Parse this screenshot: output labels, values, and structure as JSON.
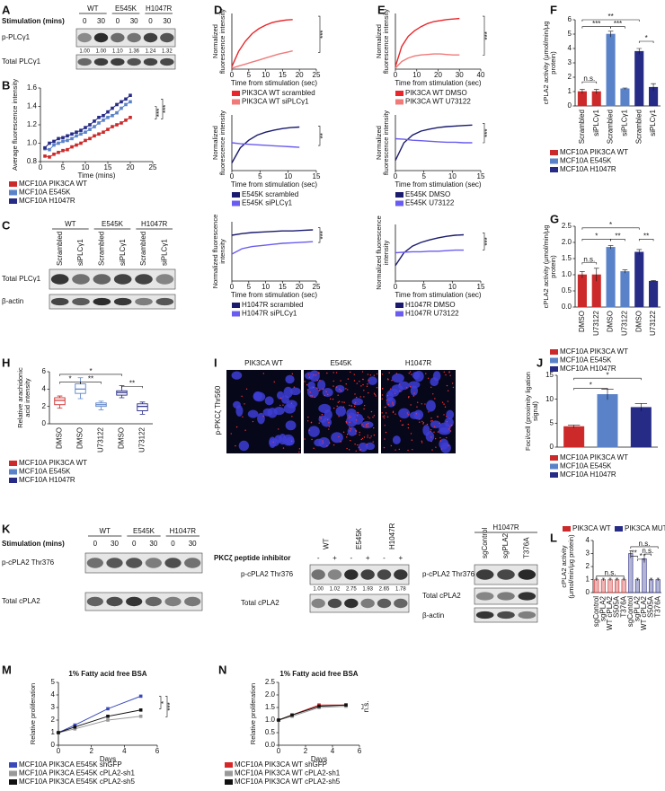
{
  "panel_labels": [
    "A",
    "B",
    "C",
    "D",
    "E",
    "F",
    "G",
    "H",
    "I",
    "J",
    "K",
    "L",
    "M",
    "N"
  ],
  "blots": {
    "A": {
      "stimulation_label": "Stimulation (mins)",
      "groups": [
        "WT",
        "E545K",
        "H1047R"
      ],
      "times": [
        "0",
        "30",
        "0",
        "30",
        "0",
        "30"
      ],
      "rows": [
        "p-PLCγ1",
        "Total PLCγ1"
      ],
      "quant": [
        "1.00",
        "1.00",
        "1.10",
        "1.36",
        "1.24",
        "1.32"
      ]
    },
    "C": {
      "groups": [
        "WT",
        "E545K",
        "H1047R"
      ],
      "lanes": [
        "Scrambled",
        "siPLCγ1",
        "Scrambled",
        "siPLCγ1",
        "Scrambled",
        "siPLCγ1"
      ],
      "rows": [
        "Total PLCγ1",
        "β-actin"
      ]
    },
    "I": {
      "ylabel": "p-PKCζ Thr560",
      "images": [
        "PIK3CA WT",
        "E545K",
        "H1047R"
      ]
    },
    "K1": {
      "stimulation_label": "Stimulation (mins)",
      "groups": [
        "WT",
        "E545K",
        "H1047R"
      ],
      "times": [
        "0",
        "30",
        "0",
        "30",
        "0",
        "30"
      ],
      "rows": [
        "p-cPLA2 Thr376",
        "Total cPLA2"
      ]
    },
    "K2": {
      "inhibitor_label": "PKCζ peptide inhibitor",
      "groups": [
        "WT",
        "E545K",
        "H1047R"
      ],
      "treatment": [
        "-",
        "+",
        "-",
        "+",
        "-",
        "+"
      ],
      "rows": [
        "p-cPLA2 Thr376",
        "Total cPLA2"
      ],
      "quant": [
        "1.00",
        "1.02",
        "2.75",
        "1.93",
        "2.65",
        "1.78"
      ]
    },
    "K3": {
      "group": "H1047R",
      "lanes": [
        "sgControl",
        "sgPLA2",
        "T376A"
      ],
      "rows": [
        "p-cPLA2 Thr376",
        "Total cPLA2",
        "β-actin"
      ]
    }
  },
  "chart_data": [
    {
      "type": "line",
      "markers": true,
      "ylabel": "Average fluorescence intensity",
      "xlabel": "Time (mins)",
      "x": [
        1,
        2,
        3,
        4,
        5,
        6,
        7,
        8,
        9,
        10,
        11,
        12,
        13,
        14,
        15,
        16,
        17,
        18,
        19,
        20
      ],
      "xlim": [
        0,
        25
      ],
      "xticks": [
        0,
        5,
        10,
        15,
        20,
        25
      ],
      "ylim": [
        0.8,
        1.6
      ],
      "yticks": [
        0.8,
        {
          "value": 1,
          "label": "1.0"
        },
        1.2,
        1.4,
        1.6
      ],
      "series": [
        {
          "name": "MCF10A PIK3CA WT",
          "color": "#cc2a2a",
          "values": [
            0.86,
            0.85,
            0.88,
            0.9,
            0.92,
            0.93,
            0.96,
            0.98,
            1.0,
            1.03,
            1.05,
            1.08,
            1.1,
            1.12,
            1.15,
            1.18,
            1.2,
            1.22,
            1.25,
            1.28
          ]
        },
        {
          "name": "MCF10A E545K",
          "color": "#5a82c8",
          "values": [
            0.94,
            0.93,
            0.98,
            1.0,
            1.02,
            1.03,
            1.05,
            1.08,
            1.1,
            1.12,
            1.15,
            1.18,
            1.22,
            1.25,
            1.28,
            1.3,
            1.33,
            1.38,
            1.42,
            1.45
          ]
        },
        {
          "name": "MCF10A H1047R",
          "color": "#262b86",
          "values": [
            0.95,
            1.0,
            1.02,
            1.05,
            1.06,
            1.08,
            1.1,
            1.12,
            1.14,
            1.17,
            1.2,
            1.24,
            1.28,
            1.3,
            1.34,
            1.38,
            1.42,
            1.45,
            1.48,
            1.52
          ]
        }
      ],
      "annotations": [
        "***",
        "***"
      ]
    },
    {
      "type": "line",
      "ylabel": "Normalized fluorescence intensity",
      "xlabel": "Time from stimulation (sec)",
      "x": [
        0,
        2,
        4,
        6,
        8,
        10,
        12,
        14,
        16,
        18
      ],
      "xlim": [
        0,
        25
      ],
      "xticks": [
        0,
        5,
        10,
        15,
        20,
        25
      ],
      "ylim": [
        0,
        1.1
      ],
      "series": [
        {
          "name": "PIK3CA WT scrambled",
          "color": "#e8262b",
          "values": [
            0.05,
            0.35,
            0.55,
            0.7,
            0.8,
            0.87,
            0.92,
            0.95,
            0.97,
            0.98
          ]
        },
        {
          "name": "PIK3CA WT siPLCγ1",
          "color": "#f07a7a",
          "values": [
            0.02,
            0.06,
            0.1,
            0.14,
            0.18,
            0.22,
            0.26,
            0.3,
            0.33,
            0.36
          ]
        }
      ],
      "annotations": [
        "***"
      ]
    },
    {
      "type": "line",
      "ylabel": "Normalized fluorescence intensity",
      "xlabel": "Time from stimulation (sec)",
      "x": [
        0,
        1.5,
        3,
        4.5,
        6,
        7.5,
        9,
        10.5,
        12
      ],
      "xlim": [
        0,
        15
      ],
      "xticks": [
        0,
        5,
        10,
        15
      ],
      "ylim": [
        0,
        1.1
      ],
      "series": [
        {
          "name": "E545K scrambled",
          "color": "#1a1a6e",
          "values": [
            0.15,
            0.45,
            0.6,
            0.7,
            0.76,
            0.8,
            0.83,
            0.85,
            0.86
          ]
        },
        {
          "name": "E545K siPLCγ1",
          "color": "#6a5cf0",
          "values": [
            0.55,
            0.53,
            0.52,
            0.51,
            0.5,
            0.49,
            0.48,
            0.47,
            0.46
          ]
        }
      ],
      "annotations": [
        "**"
      ]
    },
    {
      "type": "line",
      "ylabel": "Normalized fluorescence intensity",
      "xlabel": "Time from stimulation (sec)",
      "x": [
        0,
        3,
        6,
        9,
        12,
        15,
        18,
        21,
        24
      ],
      "xlim": [
        0,
        25
      ],
      "xticks": [
        0,
        5,
        10,
        15,
        20,
        25
      ],
      "ylim": [
        0,
        1.1
      ],
      "series": [
        {
          "name": "H1047R scrambled",
          "color": "#1a1a6e",
          "values": [
            0.85,
            0.88,
            0.9,
            0.91,
            0.92,
            0.93,
            0.93,
            0.94,
            0.95
          ]
        },
        {
          "name": "H1047R siPLCγ1",
          "color": "#6a5cf0",
          "values": [
            0.5,
            0.6,
            0.64,
            0.66,
            0.68,
            0.7,
            0.71,
            0.72,
            0.73
          ]
        }
      ],
      "annotations": [
        "***"
      ]
    },
    {
      "type": "line",
      "ylabel": "Normalized fluorescence intensity",
      "xlabel": "Time from stimulation (sec)",
      "x": [
        0,
        3,
        6,
        9,
        12,
        15,
        18,
        21,
        24,
        27,
        30
      ],
      "xlim": [
        0,
        40
      ],
      "xticks": [
        0,
        10,
        20,
        30,
        40
      ],
      "ylim": [
        0,
        1.1
      ],
      "series": [
        {
          "name": "PIK3CA WT DMSO",
          "color": "#e8262b",
          "values": [
            0.05,
            0.45,
            0.65,
            0.76,
            0.84,
            0.9,
            0.94,
            0.96,
            0.98,
            0.99,
            1.0
          ]
        },
        {
          "name": "PIK3CA WT U73122",
          "color": "#f07a7a",
          "values": [
            0.02,
            0.15,
            0.22,
            0.26,
            0.28,
            0.29,
            0.3,
            0.3,
            0.29,
            0.28,
            0.28
          ]
        }
      ],
      "annotations": [
        "***"
      ]
    },
    {
      "type": "line",
      "ylabel": "Normalized fluorescence intensity",
      "xlabel": "Time from stimulation (sec)",
      "x": [
        0,
        1.5,
        3,
        4.5,
        6,
        7.5,
        9,
        10.5,
        12,
        13.5
      ],
      "xlim": [
        0,
        15
      ],
      "xticks": [
        0,
        5,
        10,
        15
      ],
      "ylim": [
        0,
        1.1
      ],
      "series": [
        {
          "name": "E545K DMSO",
          "color": "#1a1a6e",
          "values": [
            0.2,
            0.55,
            0.7,
            0.78,
            0.82,
            0.85,
            0.87,
            0.88,
            0.89,
            0.9
          ]
        },
        {
          "name": "E545K U73122",
          "color": "#6a5cf0",
          "values": [
            0.63,
            0.62,
            0.6,
            0.59,
            0.58,
            0.57,
            0.56,
            0.56,
            0.55,
            0.55
          ]
        }
      ],
      "annotations": [
        "***"
      ]
    },
    {
      "type": "line",
      "ylabel": "Normalized fluorescence intensity",
      "xlabel": "Time from stimulation (sec)",
      "x": [
        0,
        1.5,
        3,
        4.5,
        6,
        7.5,
        9,
        10.5,
        12
      ],
      "xlim": [
        0,
        15
      ],
      "xticks": [
        0,
        5,
        10,
        15
      ],
      "ylim": [
        0,
        1.1
      ],
      "series": [
        {
          "name": "H1047R DMSO",
          "color": "#1a1a6e",
          "values": [
            0.3,
            0.55,
            0.68,
            0.75,
            0.8,
            0.84,
            0.87,
            0.89,
            0.9
          ]
        },
        {
          "name": "H1047R U73122",
          "color": "#6a5cf0",
          "values": [
            0.55,
            0.56,
            0.57,
            0.57,
            0.58,
            0.58,
            0.59,
            0.6,
            0.6
          ]
        }
      ],
      "annotations": [
        "***"
      ]
    },
    {
      "type": "bar",
      "ylabel": "cPLA2 activity (μmol/min/μg protein)",
      "categories": [
        "Scrambled",
        "siPLCγ1",
        "Scrambled",
        "siPLCγ1",
        "Scrambled",
        "siPLCγ1"
      ],
      "values": [
        1,
        1,
        5,
        1.2,
        3.8,
        1.3
      ],
      "errors": [
        0.15,
        0.15,
        0.2,
        0.05,
        0.2,
        0.25
      ],
      "colors": [
        "#cc2a2a",
        "#cc2a2a",
        "#5a82c8",
        "#5a82c8",
        "#262b86",
        "#262b86"
      ],
      "ylim": [
        0,
        6
      ],
      "yticks": [
        0,
        1,
        2,
        3,
        4,
        5,
        6
      ],
      "legend": [
        {
          "name": "MCF10A PIK3CA WT",
          "color": "#cc2a2a"
        },
        {
          "name": "MCF10A E545K",
          "color": "#5a82c8"
        },
        {
          "name": "MCF10A H1047R",
          "color": "#262b86"
        }
      ],
      "annotations": [
        "n.s.",
        "**",
        "***",
        "***",
        "*"
      ]
    },
    {
      "type": "bar",
      "ylabel": "cPLA2 activity (μmol/min/μg protein)",
      "categories": [
        "DMSO",
        "U73122",
        "DMSO",
        "U73122",
        "DMSO",
        "U73122"
      ],
      "values": [
        1,
        1,
        1.85,
        1.1,
        1.7,
        0.8
      ],
      "errors": [
        0.1,
        0.2,
        0.05,
        0.05,
        0.08,
        0.02
      ],
      "colors": [
        "#cc2a2a",
        "#cc2a2a",
        "#5a82c8",
        "#5a82c8",
        "#262b86",
        "#262b86"
      ],
      "ylim": [
        0,
        2.5
      ],
      "yticks": [
        {
          "value": 0,
          "label": "0.0"
        },
        0.5,
        {
          "value": 1,
          "label": "1.0"
        },
        1.5,
        {
          "value": 2,
          "label": "2.0"
        },
        2.5
      ],
      "legend": [
        {
          "name": "MCF10A PIK3CA WT",
          "color": "#cc2a2a"
        },
        {
          "name": "MCF10A E545K",
          "color": "#5a82c8"
        },
        {
          "name": "MCF10A H1047R",
          "color": "#262b86"
        }
      ],
      "annotations": [
        "n.s.",
        "*",
        "**",
        "*",
        "**"
      ]
    },
    {
      "type": "box",
      "ylabel": "Relative arachidonic acid intensity",
      "categories": [
        "DMSO",
        "DMSO",
        "U73122",
        "DMSO",
        "U73122"
      ],
      "boxes": [
        {
          "min": 1.8,
          "q1": 2.2,
          "median": 2.7,
          "q3": 3.0,
          "max": 3.2
        },
        {
          "min": 2.9,
          "q1": 3.5,
          "median": 4.0,
          "q3": 4.6,
          "max": 5.3
        },
        {
          "min": 1.6,
          "q1": 2.0,
          "median": 2.2,
          "q3": 2.4,
          "max": 2.6
        },
        {
          "min": 3.0,
          "q1": 3.3,
          "median": 3.6,
          "q3": 3.8,
          "max": 4.4
        },
        {
          "min": 1.1,
          "q1": 1.5,
          "median": 2.0,
          "q3": 2.3,
          "max": 2.5
        }
      ],
      "colors": [
        "#cc2a2a",
        "#5a82c8",
        "#5a82c8",
        "#262b86",
        "#262b86"
      ],
      "ylim": [
        0,
        6
      ],
      "yticks": [
        0,
        2,
        4,
        6
      ],
      "legend": [
        {
          "name": "MCF10A PIK3CA WT",
          "color": "#cc2a2a"
        },
        {
          "name": "MCF10A E545K",
          "color": "#5a82c8"
        },
        {
          "name": "MCF10A H1047R",
          "color": "#262b86"
        }
      ],
      "annotations": [
        "*",
        "**",
        "*",
        "**"
      ]
    },
    {
      "type": "bar",
      "ylabel": "Foci/cell (proximity ligation signal)",
      "categories": [
        null,
        null,
        null
      ],
      "values": [
        4.3,
        11,
        8.3
      ],
      "errors": [
        0.3,
        1.1,
        0.8
      ],
      "colors": [
        "#cc2a2a",
        "#5a82c8",
        "#262b86"
      ],
      "ylim": [
        0,
        15
      ],
      "yticks": [
        0,
        5,
        10,
        15
      ],
      "legend": [
        {
          "name": "MCF10A PIK3CA WT",
          "color": "#cc2a2a"
        },
        {
          "name": "MCF10A E545K",
          "color": "#5a82c8"
        },
        {
          "name": "MCF10A H1047R",
          "color": "#262b86"
        }
      ],
      "annotations": [
        "*",
        "*"
      ]
    },
    {
      "type": "bar",
      "ylabel": "cPLA2 activity (μmol/min/μg protein)",
      "categories": [
        "sgControl",
        "sgPLA2",
        "WT cPLA2",
        "S505A",
        "T376A",
        "sgControl",
        "sgPLA2",
        "WT cPLA2",
        "S505A",
        "T376A"
      ],
      "values": [
        1,
        1,
        1,
        1,
        1,
        3,
        1,
        2.6,
        1,
        1
      ],
      "errors": [
        0.1,
        0.1,
        0.1,
        0.1,
        0.1,
        0.2,
        0.1,
        0.3,
        0.1,
        0.1
      ],
      "colors": [
        "#cc2a2a",
        "#cc2a2a",
        "#cc2a2a",
        "#cc2a2a",
        "#cc2a2a",
        "#262b86",
        "#262b86",
        "#262b86",
        "#262b86",
        "#262b86"
      ],
      "ylim": [
        0,
        4
      ],
      "yticks": [
        0,
        1,
        2,
        3,
        4
      ],
      "legend": [
        {
          "name": "PIK3CA WT",
          "color": "#cc2a2a"
        },
        {
          "name": "PIK3CA MUT",
          "color": "#262b86"
        }
      ],
      "annotations": [
        "n.s.",
        "**",
        "*",
        "n.s.",
        "n.s."
      ]
    },
    {
      "type": "line",
      "markers": true,
      "title": "1% Fatty acid free BSA",
      "ylabel": "Relative proliferation",
      "xlabel": "Days",
      "x": [
        0,
        1,
        3,
        5
      ],
      "xlim": [
        0,
        6
      ],
      "xticks": [
        0,
        2,
        4,
        6
      ],
      "ylim": [
        0,
        5
      ],
      "yticks": [
        0,
        1,
        2,
        3,
        4,
        5
      ],
      "series": [
        {
          "name": "MCF10A PIK3CA E545K shGFP",
          "color": "#3a4ab8",
          "values": [
            1,
            1.6,
            2.9,
            3.9
          ]
        },
        {
          "name": "MCF10A PIK3CA E545K cPLA2-sh1",
          "color": "#999999",
          "values": [
            1,
            1.3,
            2.0,
            2.3
          ]
        },
        {
          "name": "MCF10A PIK3CA E545K cPLA2-sh5",
          "color": "#111111",
          "values": [
            1,
            1.45,
            2.3,
            2.8
          ]
        }
      ],
      "annotations": [
        "*",
        "***"
      ]
    },
    {
      "type": "line",
      "markers": true,
      "title": "1% Fatty acid free BSA",
      "ylabel": "Relative proliferation",
      "xlabel": "Days",
      "x": [
        0,
        1,
        3,
        5
      ],
      "xlim": [
        0,
        6
      ],
      "xticks": [
        0,
        2,
        4,
        6
      ],
      "ylim": [
        0,
        2.5
      ],
      "yticks": [
        {
          "value": 0,
          "label": "0.0"
        },
        0.5,
        {
          "value": 1,
          "label": "1.0"
        },
        1.5,
        {
          "value": 2,
          "label": "2.0"
        },
        2.5
      ],
      "series": [
        {
          "name": "MCF10A PIK3CA WT shGFP",
          "color": "#d62728",
          "values": [
            1,
            1.2,
            1.6,
            1.6
          ]
        },
        {
          "name": "MCF10A PIK3CA WT cPLA2-sh1",
          "color": "#999999",
          "values": [
            1,
            1.15,
            1.5,
            1.55
          ]
        },
        {
          "name": "MCF10A PIK3CA WT cPLA2-sh5",
          "color": "#111111",
          "values": [
            1,
            1.2,
            1.55,
            1.6
          ]
        }
      ],
      "annotations": [
        "n.s."
      ]
    }
  ]
}
